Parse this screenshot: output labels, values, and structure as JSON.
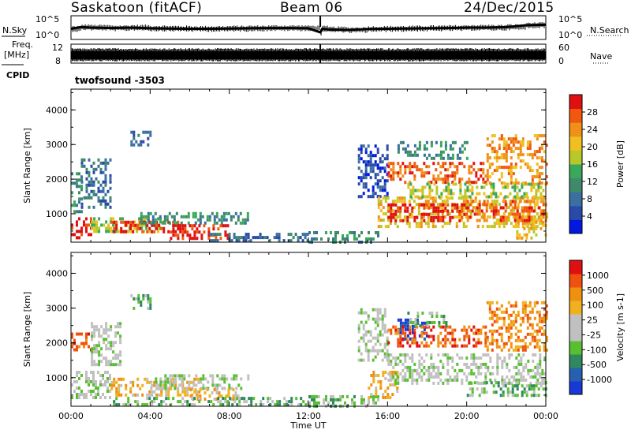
{
  "header": {
    "station": "Saskatoon (fitACF)",
    "beam": "Beam 06",
    "date": "24/Dec/2015"
  },
  "strip_panels": {
    "nsky_label": "N.Sky",
    "nsky_ticks": [
      "10^5",
      "10^0"
    ],
    "nsearch_label": "N.Search",
    "nsearch_ticks": [
      "10^5",
      "10^0"
    ],
    "freq_label": "Freq.",
    "freq_unit": "[MHz]",
    "freq_ticks": [
      "12",
      "8"
    ],
    "nave_label": "Nave",
    "nave_ticks": [
      "60",
      "0"
    ],
    "cpid_label": "CPID",
    "cpid_value": "twofsound -3503"
  },
  "colors": {
    "power_scale": [
      "#0018e0",
      "#2a4aa8",
      "#3a6fa0",
      "#3f8a6a",
      "#3aa85a",
      "#b8c82a",
      "#f0c020",
      "#f09018",
      "#f05810",
      "#e01010"
    ],
    "velocity_scale": [
      "#1838d8",
      "#2860b0",
      "#308860",
      "#58c030",
      "#c0c0c0",
      "#c0c0c0",
      "#f0b020",
      "#f09010",
      "#f05010",
      "#e01010"
    ]
  },
  "chart_data": [
    {
      "type": "line",
      "name": "nsky-nsearch",
      "ylabel_left": "N.Sky",
      "ylabel_right": "N.Search",
      "yticks_left": [
        "10^5",
        "10^0"
      ],
      "yticks_right": [
        "10^5",
        "10^0"
      ],
      "x_range_hours": [
        0,
        24
      ],
      "trace_level": [
        [
          0.0,
          0.45
        ],
        [
          0.5,
          0.52
        ],
        [
          1,
          0.5
        ],
        [
          2,
          0.48
        ],
        [
          3,
          0.5
        ],
        [
          4,
          0.47
        ],
        [
          5,
          0.46
        ],
        [
          6,
          0.45
        ],
        [
          7,
          0.45
        ],
        [
          8,
          0.46
        ],
        [
          9,
          0.47
        ],
        [
          10,
          0.48
        ],
        [
          11,
          0.48
        ],
        [
          12,
          0.47
        ],
        [
          12.6,
          0.3
        ],
        [
          12.7,
          0.45
        ],
        [
          13,
          0.42
        ],
        [
          14,
          0.4
        ],
        [
          15,
          0.44
        ],
        [
          16,
          0.45
        ],
        [
          17,
          0.46
        ],
        [
          18,
          0.47
        ],
        [
          19,
          0.48
        ],
        [
          20,
          0.5
        ],
        [
          21,
          0.5
        ],
        [
          22,
          0.52
        ],
        [
          23,
          0.6
        ],
        [
          24,
          0.62
        ]
      ]
    },
    {
      "type": "area",
      "name": "freq-nave",
      "ylabel_left": "Freq. [MHz]",
      "ylabel_right": "Nave",
      "yticks_left": [
        "12",
        "8"
      ],
      "yticks_right": [
        "60",
        "0"
      ],
      "x_range_hours": [
        0,
        24
      ],
      "note": "dense band of frequency and nave values across the entire day"
    },
    {
      "type": "heatmap",
      "name": "power",
      "xlabel": "",
      "ylabel": "Slant Range [km]",
      "colorbar_label": "Power [dB]",
      "colorbar_ticks": [
        "28",
        "24",
        "20",
        "16",
        "12",
        "8",
        "4"
      ],
      "colorbar_range": [
        0,
        30
      ],
      "x_range_hours": [
        0,
        24
      ],
      "y_range_km": [
        180,
        4600
      ],
      "yticks": [
        1000,
        2000,
        3000,
        4000
      ],
      "patches": [
        {
          "t0": 0.0,
          "t1": 1.0,
          "r0": 350,
          "r1": 900,
          "level": 9
        },
        {
          "t0": 0.0,
          "t1": 0.5,
          "r0": 1100,
          "r1": 2200,
          "level": 3
        },
        {
          "t0": 0.5,
          "t1": 2.0,
          "r0": 1200,
          "r1": 2600,
          "level": 2
        },
        {
          "t0": 1.0,
          "t1": 4.5,
          "r0": 500,
          "r1": 900,
          "level": 5
        },
        {
          "t0": 2.0,
          "t1": 5.5,
          "r0": 500,
          "r1": 800,
          "level": 9
        },
        {
          "t0": 3.5,
          "t1": 9.0,
          "r0": 750,
          "r1": 1050,
          "level": 3
        },
        {
          "t0": 5.0,
          "t1": 8.0,
          "r0": 300,
          "r1": 700,
          "level": 9
        },
        {
          "t0": 3.0,
          "t1": 4.0,
          "r0": 3000,
          "r1": 3400,
          "level": 2
        },
        {
          "t0": 7.0,
          "t1": 12.0,
          "r0": 200,
          "r1": 450,
          "level": 2
        },
        {
          "t0": 12.0,
          "t1": 15.5,
          "r0": 200,
          "r1": 500,
          "level": 3
        },
        {
          "t0": 14.5,
          "t1": 16.0,
          "r0": 1500,
          "r1": 3000,
          "level": 1
        },
        {
          "t0": 15.5,
          "t1": 24.0,
          "r0": 600,
          "r1": 1500,
          "level": 6
        },
        {
          "t0": 16.0,
          "t1": 20.0,
          "r0": 800,
          "r1": 1300,
          "level": 9
        },
        {
          "t0": 20.0,
          "t1": 24.0,
          "r0": 800,
          "r1": 1400,
          "level": 8
        },
        {
          "t0": 16.0,
          "t1": 21.0,
          "r0": 1900,
          "r1": 2500,
          "level": 8
        },
        {
          "t0": 17.0,
          "t1": 24.0,
          "r0": 1500,
          "r1": 1900,
          "level": 5
        },
        {
          "t0": 21.0,
          "t1": 24.0,
          "r0": 1900,
          "r1": 3300,
          "level": 7
        },
        {
          "t0": 16.5,
          "t1": 20.0,
          "r0": 2600,
          "r1": 3100,
          "level": 3
        },
        {
          "t0": 22.5,
          "t1": 24.0,
          "r0": 300,
          "r1": 800,
          "level": 6
        }
      ]
    },
    {
      "type": "heatmap",
      "name": "velocity",
      "xlabel": "Time UT",
      "ylabel": "Slant Range [km]",
      "colorbar_label": "Velocity [m s-1]",
      "colorbar_ticks": [
        "1000",
        "500",
        "100",
        "25",
        "-25",
        "-100",
        "-500",
        "-1000"
      ],
      "x_range_hours": [
        0,
        24
      ],
      "xticks": [
        "00:00",
        "04:00",
        "08:00",
        "12:00",
        "16:00",
        "20:00",
        "00:00"
      ],
      "y_range_km": [
        180,
        4600
      ],
      "yticks": [
        1000,
        2000,
        3000,
        4000
      ],
      "patches": [
        {
          "t0": 0.0,
          "t1": 2.0,
          "r0": 400,
          "r1": 1200,
          "level": 4
        },
        {
          "t0": 0.0,
          "t1": 1.0,
          "r0": 1800,
          "r1": 2300,
          "level": 8
        },
        {
          "t0": 1.0,
          "t1": 2.5,
          "r0": 1400,
          "r1": 2600,
          "level": 4
        },
        {
          "t0": 2.0,
          "t1": 6.5,
          "r0": 500,
          "r1": 1000,
          "level": 6
        },
        {
          "t0": 4.0,
          "t1": 9.0,
          "r0": 700,
          "r1": 1100,
          "level": 4
        },
        {
          "t0": 6.0,
          "t1": 8.5,
          "r0": 400,
          "r1": 700,
          "level": 6
        },
        {
          "t0": 3.0,
          "t1": 4.0,
          "r0": 3000,
          "r1": 3400,
          "level": 3
        },
        {
          "t0": 2.0,
          "t1": 12.0,
          "r0": 200,
          "r1": 450,
          "level": 3
        },
        {
          "t0": 12.0,
          "t1": 15.5,
          "r0": 200,
          "r1": 500,
          "level": 3
        },
        {
          "t0": 14.5,
          "t1": 16.0,
          "r0": 1500,
          "r1": 3000,
          "level": 4
        },
        {
          "t0": 15.0,
          "t1": 16.5,
          "r0": 400,
          "r1": 1200,
          "level": 6
        },
        {
          "t0": 16.0,
          "t1": 24.0,
          "r0": 800,
          "r1": 1700,
          "level": 4
        },
        {
          "t0": 16.5,
          "t1": 18.0,
          "r0": 2100,
          "r1": 2700,
          "level": 0
        },
        {
          "t0": 16.0,
          "t1": 21.0,
          "r0": 1900,
          "r1": 2500,
          "level": 8
        },
        {
          "t0": 17.0,
          "t1": 19.0,
          "r0": 2500,
          "r1": 2900,
          "level": 3
        },
        {
          "t0": 21.0,
          "t1": 24.0,
          "r0": 1800,
          "r1": 3200,
          "level": 7
        },
        {
          "t0": 20.0,
          "t1": 24.0,
          "r0": 500,
          "r1": 900,
          "level": 3
        }
      ]
    }
  ]
}
